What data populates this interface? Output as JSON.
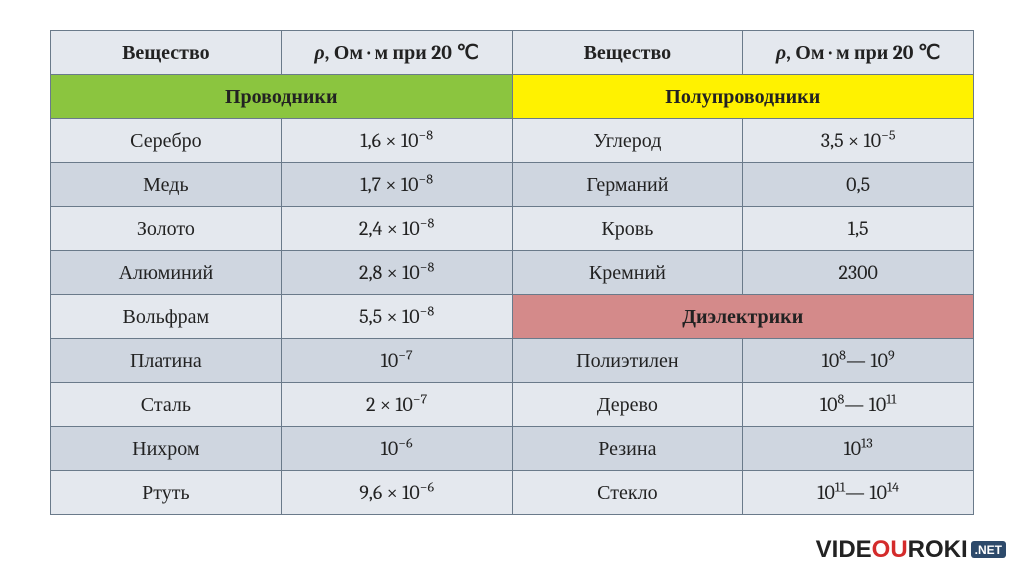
{
  "table": {
    "header": {
      "substance": "Вещество",
      "resistivity_html": "<span class='rho'>ρ</span>, Ом · м при <b>20</b> ℃"
    },
    "categories": {
      "conductors": {
        "label": "Проводники",
        "bg": "#8bc53f"
      },
      "semis": {
        "label": "Полупроводники",
        "bg": "#fff200"
      },
      "insulators": {
        "label": "Диэлектрики",
        "bg": "#d48a8a"
      }
    },
    "colors": {
      "row_odd": "#e4e8ee",
      "row_even": "#cfd6e0",
      "header_bg": "#e4e8ee",
      "border": "#6a7a8a",
      "text": "#222222"
    },
    "font": {
      "family": "Cambria / Times New Roman",
      "size_pt": 15,
      "header_weight": 700
    },
    "rows": [
      {
        "left": {
          "name": "Серебро",
          "value_html": "1,6 × 10<sup>−8</sup>"
        },
        "right": {
          "name": "Углерод",
          "value_html": "3,5 × 10<sup>−5</sup>"
        },
        "band": "odd"
      },
      {
        "left": {
          "name": "Медь",
          "value_html": "1,7 × 10<sup>−8</sup>"
        },
        "right": {
          "name": "Германий",
          "value_html": "0,5"
        },
        "band": "even"
      },
      {
        "left": {
          "name": "Золото",
          "value_html": "2,4 × 10<sup>−8</sup>"
        },
        "right": {
          "name": "Кровь",
          "value_html": "1,5"
        },
        "band": "odd"
      },
      {
        "left": {
          "name": "Алюминий",
          "value_html": "2,8 × 10<sup>−8</sup>"
        },
        "right": {
          "name": "Кремний",
          "value_html": "2300"
        },
        "band": "even"
      },
      {
        "left": {
          "name": "Вольфрам",
          "value_html": "5,5 × 10<sup>−8</sup>"
        },
        "right": "CATEGORY_INSULATORS",
        "band": "odd"
      },
      {
        "left": {
          "name": "Платина",
          "value_html": "10<sup>−7</sup>"
        },
        "right": {
          "name": "Полиэтилен",
          "value_html": "10<sup>8</sup>— 10<sup>9</sup>"
        },
        "band": "even"
      },
      {
        "left": {
          "name": "Сталь",
          "value_html": "2 × 10<sup>−7</sup>"
        },
        "right": {
          "name": "Дерево",
          "value_html": "10<sup>8</sup>— 10<sup>11</sup>"
        },
        "band": "odd"
      },
      {
        "left": {
          "name": "Нихром",
          "value_html": "10<sup>−6</sup>"
        },
        "right": {
          "name": "Резина",
          "value_html": "10<sup>13</sup>"
        },
        "band": "even"
      },
      {
        "left": {
          "name": "Ртуть",
          "value_html": "9,6 × 10<sup>−6</sup>"
        },
        "right": {
          "name": "Стекло",
          "value_html": "10<sup>11</sup>— 10<sup>14</sup>"
        },
        "band": "odd"
      }
    ]
  },
  "watermark": {
    "prefix": "VIDE",
    "highlight": "OU",
    "suffix": "ROKI",
    "badge": ".NET",
    "highlight_color": "#d42b2b",
    "badge_bg": "#2d4a6b"
  }
}
